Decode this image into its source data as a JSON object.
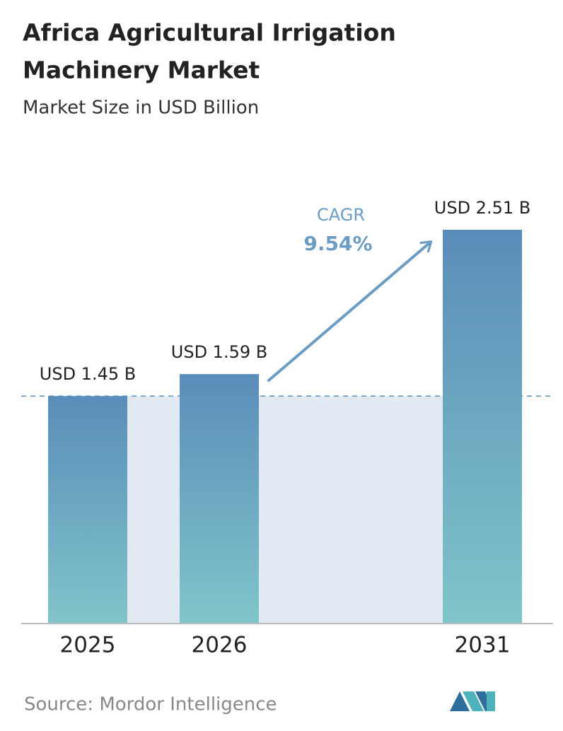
{
  "chart_data": {
    "type": "bar",
    "title": [
      "Africa Agricultural Irrigation",
      "Machinery Market"
    ],
    "subtitle": "Market Size in USD Billion",
    "categories": [
      "2025",
      "2026",
      "2031"
    ],
    "values": [
      1.45,
      1.59,
      2.51
    ],
    "value_labels": [
      "USD 1.45 B",
      "USD 1.59 B",
      "USD 2.51 B"
    ],
    "cagr": {
      "label": "CAGR",
      "text": "9.54%"
    },
    "source": "Source:  Mordor Intelligence",
    "colors": [
      "#5a8dba",
      "#80c5c9"
    ]
  }
}
